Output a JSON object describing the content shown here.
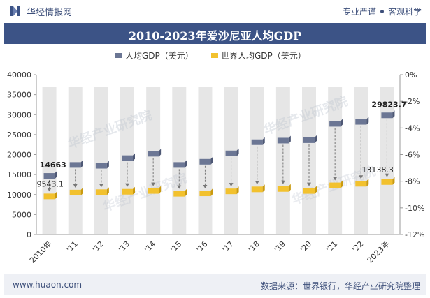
{
  "header": {
    "brand": "华经情报网",
    "slogan_left": "专业严谨",
    "slogan_right": "客观科学"
  },
  "footer": {
    "site": "www.huaon.com",
    "source": "数据来源：世界银行，华经产业研究院整理"
  },
  "colors": {
    "header_bg": "#3c5386",
    "series1": "#6b7694",
    "series2": "#f2c12e",
    "column_bg": "#e6e6e6"
  },
  "chart_data": {
    "type": "line",
    "title": "2010-2023年爱沙尼亚人均GDP",
    "categories": [
      "2010年",
      "'11",
      "'12",
      "'13",
      "'14",
      "'15",
      "'16",
      "'17",
      "'18",
      "'19",
      "'20",
      "'21",
      "'22",
      "2023年"
    ],
    "series": [
      {
        "name": "人均GDP（美元）",
        "values": [
          14663,
          17400,
          17200,
          19100,
          20200,
          17400,
          18200,
          20300,
          23100,
          23500,
          23600,
          27700,
          28200,
          29823.7
        ]
      },
      {
        "name": "世界人均GDP（美元）",
        "values": [
          9543.1,
          10500,
          10600,
          10700,
          10900,
          10200,
          10300,
          10800,
          11300,
          11400,
          10900,
          12300,
          12700,
          13138.3
        ]
      }
    ],
    "data_labels": [
      {
        "series": 0,
        "index": 0,
        "text": "14663"
      },
      {
        "series": 1,
        "index": 0,
        "text": "9543.1"
      },
      {
        "series": 0,
        "index": 13,
        "text": "29823.7"
      },
      {
        "series": 1,
        "index": 13,
        "text": "13138.3"
      }
    ],
    "ylim": [
      0,
      40000
    ],
    "yticks": [
      "0",
      "5000",
      "10000",
      "15000",
      "20000",
      "25000",
      "30000",
      "35000",
      "40000"
    ],
    "y2ticks": [
      "0%",
      "-2%",
      "-4%",
      "-6%",
      "-8%",
      "-10%",
      "-12%"
    ],
    "legend_position": "top-center"
  }
}
